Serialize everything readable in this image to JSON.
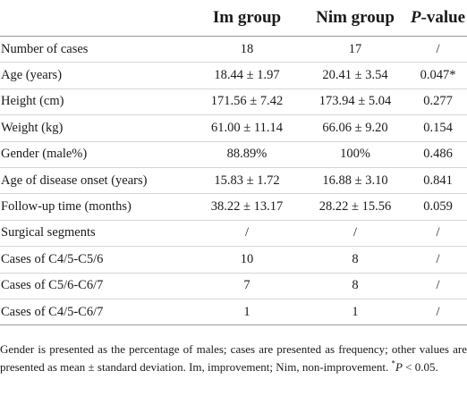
{
  "table": {
    "headers": [
      "",
      "Im group",
      "Nim group",
      "P-value"
    ],
    "header_pvalue_letter": "P",
    "header_pvalue_suffix": "-value",
    "rows": [
      {
        "label": "Number of cases",
        "im": "18",
        "nim": "17",
        "p": "/"
      },
      {
        "label": "Age (years)",
        "im": "18.44 ± 1.97",
        "nim": "20.41 ± 3.54",
        "p": "0.047*"
      },
      {
        "label": "Height (cm)",
        "im": "171.56 ± 7.42",
        "nim": "173.94 ± 5.04",
        "p": "0.277"
      },
      {
        "label": "Weight (kg)",
        "im": "61.00 ± 11.14",
        "nim": "66.06 ± 9.20",
        "p": "0.154"
      },
      {
        "label": "Gender (male%)",
        "im": "88.89%",
        "nim": "100%",
        "p": "0.486"
      },
      {
        "label": "Age of disease onset (years)",
        "im": "15.83 ± 1.72",
        "nim": "16.88 ± 3.10",
        "p": "0.841"
      },
      {
        "label": "Follow-up time (months)",
        "im": "38.22 ± 13.17",
        "nim": "28.22 ± 15.56",
        "p": "0.059"
      },
      {
        "label": "Surgical segments",
        "im": "/",
        "nim": "/",
        "p": "/"
      },
      {
        "label": "Cases of C4/5-C5/6",
        "im": "10",
        "nim": "8",
        "p": "/"
      },
      {
        "label": "Cases of C5/6-C6/7",
        "im": "7",
        "nim": "8",
        "p": "/"
      },
      {
        "label": "Cases of C4/5-C6/7",
        "im": "1",
        "nim": "1",
        "p": "/"
      }
    ]
  },
  "footnote": {
    "text_main": "Gender is presented as the percentage of males; cases are presented as frequency; other values are presented as mean ± standard deviation. Im, improvement; Nim, non-improvement. ",
    "sig_marker": "*",
    "sig_p": "P",
    "sig_rest": " < 0.05."
  }
}
